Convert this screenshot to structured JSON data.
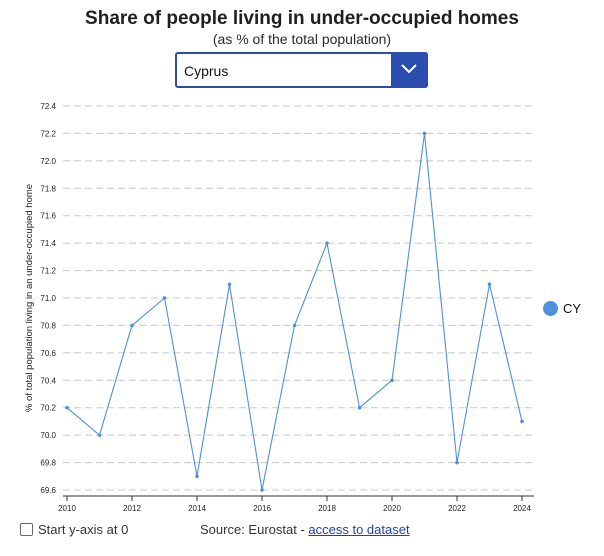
{
  "title": "Share of people living in under-occupied homes",
  "subtitle": "(as % of the total population)",
  "country_select": {
    "selected": "Cyprus",
    "icon": "chevron-down-icon"
  },
  "footer": {
    "checkbox_label": "Start y-axis at 0",
    "checkbox_checked": false,
    "source_prefix": "Source: Eurostat - ",
    "source_link": "access to dataset"
  },
  "colors": {
    "series": "#4f8fdc",
    "accent": "#2b4db0",
    "grid": "#c8c8c8"
  },
  "chart_data": {
    "type": "line",
    "x": [
      2010,
      2011,
      2012,
      2013,
      2014,
      2015,
      2016,
      2017,
      2018,
      2019,
      2020,
      2021,
      2022,
      2023,
      2024
    ],
    "series": [
      {
        "name": "CY",
        "values": [
          70.2,
          70.0,
          70.8,
          71.0,
          69.7,
          71.1,
          69.6,
          70.8,
          71.4,
          70.2,
          70.4,
          72.2,
          69.8,
          71.1,
          70.1
        ]
      }
    ],
    "x_ticks": [
      "2010",
      "2012",
      "2014",
      "2016",
      "2018",
      "2020",
      "2022",
      "2024"
    ],
    "y_ticks": [
      "69.6",
      "69.8",
      "70.0",
      "70.2",
      "70.4",
      "70.6",
      "70.8",
      "71.0",
      "71.2",
      "71.4",
      "71.6",
      "71.8",
      "72.0",
      "72.2",
      "72.4"
    ],
    "ylabel": "% of total population living in an under-occupied home",
    "xlabel": "",
    "ylim": [
      69.6,
      72.4
    ],
    "xlim": [
      2010,
      2024
    ],
    "grid": "horizontal dashed",
    "legend_position": "right"
  }
}
